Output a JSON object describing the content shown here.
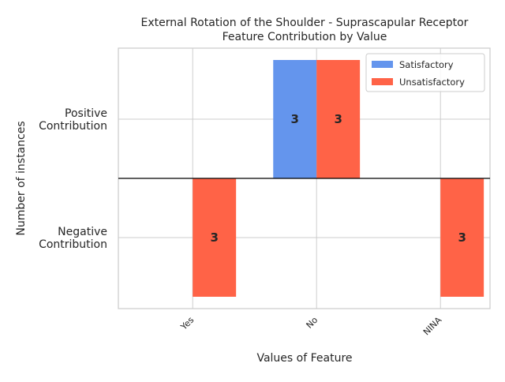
{
  "chart_data": {
    "type": "bar",
    "title_line1": "External Rotation of the Shoulder - Suprascapular Receptor",
    "title_line2": "Feature Contribution by Value",
    "xlabel": "Values of Feature",
    "ylabel": "Number of instances",
    "categories": [
      "Yes",
      "No",
      "NINA"
    ],
    "y_tick_labels": [
      {
        "line1": "Positive",
        "line2": "Contribution",
        "value": 2.5
      },
      {
        "line1": "Negative",
        "line2": "Contribution",
        "value": -2.5
      }
    ],
    "ylim": [
      -5.5,
      5.5
    ],
    "grid": true,
    "legend_position": "top-right",
    "series": [
      {
        "name": "Satisfactory",
        "color": "#6495ED",
        "values": [
          0,
          5,
          0
        ],
        "labels": [
          "",
          "3",
          ""
        ]
      },
      {
        "name": "Unsatisfactory",
        "color": "#FF6347",
        "values": [
          -5,
          5,
          -5
        ],
        "labels": [
          "3",
          "3",
          "3"
        ]
      }
    ]
  }
}
